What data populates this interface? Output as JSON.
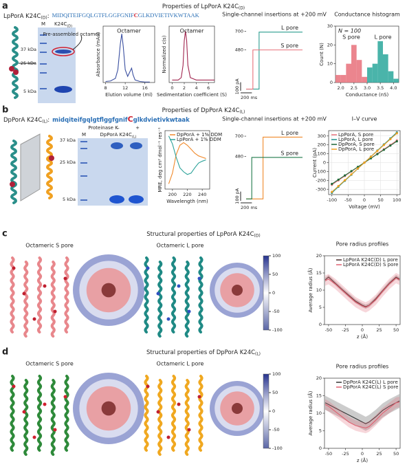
{
  "figure": {
    "a": {
      "letter": "a",
      "title": [
        "Properties of LpPorA K24C",
        "(D)"
      ],
      "seq_label": [
        "LpPorA K24C",
        "(D)",
        ":"
      ],
      "sequence": [
        "MIDQITEIFGQLGTFLGGFGNIF",
        "C",
        "GLKDVIETIVKWTAAK"
      ],
      "gel_lanes": [
        "M",
        "K24C",
        "(D)"
      ],
      "gel_markers": [
        "37 kDa",
        "25 kDa",
        "5 kDa"
      ],
      "gel_note": "Pre-assembled octamer"
    },
    "b": {
      "letter": "b",
      "title": [
        "Properties of DpPorA K24C",
        "(L)"
      ],
      "seq_label": [
        "DpPorA K24C",
        "(L)",
        ":"
      ],
      "sequence": [
        "midqiteifgqlgtflggfgnif",
        "C",
        "glkdvietivkwtaak"
      ],
      "protease": [
        "Proteinase K",
        "–",
        "+"
      ],
      "gel_lanes": [
        "M",
        "DpPorA K24C",
        "(L)"
      ],
      "gel_markers": [
        "37 kDa",
        "25 kDa",
        "5 kDa"
      ]
    },
    "c": {
      "letter": "c",
      "title": [
        "Structural properties of LpPorA K24C",
        "(D)"
      ],
      "views": [
        "Octameric S pore",
        "Octameric L pore"
      ],
      "colorbar": {
        "lim": [
          -100,
          100
        ],
        "ticks": [
          100,
          50,
          0,
          -50,
          -100
        ],
        "colors": [
          "#27348f",
          "#ffffff",
          "#5a66a6"
        ]
      }
    },
    "d": {
      "letter": "d",
      "title": [
        "Structural properties of DpPorA K24C",
        "(L)"
      ],
      "views": [
        "Octameric S pore",
        "Octameric L pore"
      ],
      "colorbar": {
        "lim": [
          -100,
          100
        ],
        "ticks": [
          100,
          50,
          0,
          -50,
          -100
        ],
        "colors": [
          "#27348f",
          "#ffffff",
          "#5a66a6"
        ]
      }
    }
  },
  "chart_data": [
    {
      "type": "line",
      "xlabel": "Elution volume (ml)",
      "ylabel": "Absorbance (mAu)",
      "annotation": "Octamer",
      "x": [
        8,
        9,
        10,
        10.5,
        11,
        11.3,
        11.6,
        12,
        12.5,
        13,
        13.3,
        13.6,
        14,
        15,
        16,
        17
      ],
      "series": [
        {
          "color": "#3a4fa0",
          "values": [
            0.02,
            0.03,
            0.08,
            0.25,
            0.75,
            0.95,
            0.7,
            0.25,
            0.12,
            0.22,
            0.28,
            0.15,
            0.05,
            0.02,
            0.01,
            0.01
          ]
        }
      ],
      "xlim": [
        7.5,
        18
      ],
      "xticks": [
        8,
        12,
        16
      ],
      "ylim": [
        0,
        1.1
      ]
    },
    {
      "type": "line",
      "xlabel": "Sedimentation coefficient (S)",
      "ylabel": "Normalized c(s)",
      "annotation": "Octamer",
      "x": [
        0,
        1,
        1.5,
        1.8,
        2.0,
        2.2,
        2.4,
        2.6,
        3,
        4,
        5,
        6,
        7
      ],
      "series": [
        {
          "color": "#a0244e",
          "values": [
            0,
            0,
            0.05,
            0.3,
            0.8,
            1.0,
            0.8,
            0.3,
            0.05,
            0,
            0,
            0,
            0
          ]
        }
      ],
      "xlim": [
        -0.5,
        7
      ],
      "xticks": [
        0,
        2,
        4,
        6
      ],
      "ylim": [
        -0.05,
        1.1
      ]
    },
    {
      "type": "line",
      "title": "Single-channel insertions at +200 mV",
      "frame": false,
      "legend": "inline",
      "x": [
        0,
        120,
        120,
        230,
        230,
        1000
      ],
      "series": [
        {
          "name": "L pore",
          "color": "#2a9d8f",
          "values": [
            20,
            20,
            20,
            20,
            690,
            690
          ]
        },
        {
          "name": "S pore",
          "color": "#e8707a",
          "values": [
            20,
            20,
            480,
            480,
            480,
            480
          ]
        }
      ],
      "xlim": [
        0,
        1000
      ],
      "ylim": [
        0,
        760
      ],
      "yticks": [
        480,
        700
      ],
      "scale_bar": {
        "x": 200,
        "x_label": "200 ms",
        "y": 100,
        "y_label": "100 pA"
      }
    },
    {
      "type": "histogram",
      "title": "Conductance histogram",
      "xlabel": "Conductance (nS)",
      "ylabel": "Count (N)",
      "annotation": "N = 100",
      "legend": "inline",
      "series": [
        {
          "name": "S pore",
          "color": "#e8707a",
          "bins": [
            1.8,
            2.0,
            2.2,
            2.4,
            2.6,
            2.8,
            3.0
          ],
          "values": [
            4,
            4,
            10,
            20,
            12,
            3
          ]
        },
        {
          "name": "L pore",
          "color": "#2aa79b",
          "bins": [
            3.0,
            3.2,
            3.4,
            3.6,
            3.8,
            4.0,
            4.2
          ],
          "values": [
            8,
            10,
            22,
            15,
            6,
            2
          ]
        }
      ],
      "xlim": [
        1.8,
        4.2
      ],
      "xticks": [
        {
          "value": 2,
          "label": "2.0"
        },
        2.5,
        {
          "value": 3,
          "label": "3.0"
        },
        3.5,
        {
          "value": 4,
          "label": "4.0"
        }
      ],
      "ylim": [
        0,
        30
      ],
      "yticks": [
        0,
        10,
        20,
        30
      ]
    },
    {
      "type": "line",
      "xlabel": "Wavelength (nm)",
      "ylabel": "MRE, deg cm² dmol⁻¹ res⁻¹",
      "legend": "upper right",
      "x": [
        195,
        200,
        205,
        210,
        215,
        220,
        225,
        230,
        235,
        240,
        245
      ],
      "series": [
        {
          "name": "DpPorA + 1% DDM",
          "color": "#f0892a",
          "values": [
            -0.9,
            -0.5,
            0.2,
            0.55,
            0.65,
            0.55,
            0.4,
            0.25,
            0.15,
            0.1,
            0.05
          ]
        },
        {
          "name": "LpPorA + 1% DDM",
          "color": "#2aa198",
          "values": [
            0.9,
            0.6,
            0.1,
            -0.3,
            -0.45,
            -0.55,
            -0.5,
            -0.3,
            -0.12,
            -0.05,
            0
          ]
        }
      ],
      "xlim": [
        190,
        250
      ],
      "xticks": [
        200,
        220,
        240
      ],
      "ylim": [
        -1.1,
        1.1
      ]
    },
    {
      "type": "line",
      "title": "Single-channel insertions at +200 mV",
      "frame": false,
      "legend": "inline",
      "x": [
        0,
        100,
        100,
        300,
        300,
        1000
      ],
      "series": [
        {
          "name": "L pore",
          "color": "#f0892a",
          "values": [
            20,
            20,
            20,
            20,
            690,
            690
          ]
        },
        {
          "name": "S pore",
          "color": "#1f7a4a",
          "values": [
            20,
            20,
            470,
            470,
            470,
            470
          ]
        }
      ],
      "xlim": [
        0,
        1000
      ],
      "ylim": [
        0,
        760
      ],
      "yticks": [
        480,
        700
      ],
      "scale_bar": {
        "x": 200,
        "x_label": "200 ms",
        "y": 100,
        "y_label": "100 pA"
      }
    },
    {
      "type": "line",
      "title": "I–V curve",
      "xlabel": "Voltage (mV)",
      "ylabel": "Current (pA)",
      "legend": "upper left",
      "markers": true,
      "grid": true,
      "x": [
        -100,
        -80,
        -60,
        -40,
        -20,
        0,
        20,
        40,
        60,
        80,
        100
      ],
      "series": [
        {
          "name": "LpPorA, S pore",
          "color": "#e8707a",
          "values": [
            -250,
            -200,
            -150,
            -100,
            -50,
            0,
            50,
            100,
            150,
            200,
            250
          ]
        },
        {
          "name": "LpPorA, L pore",
          "color": "#1f8f8a",
          "values": [
            -340,
            -272,
            -204,
            -136,
            -68,
            0,
            68,
            136,
            204,
            272,
            340
          ]
        },
        {
          "name": "DpPorA, S pore",
          "color": "#1f6b3a",
          "values": [
            -240,
            -192,
            -144,
            -96,
            -48,
            0,
            48,
            96,
            144,
            192,
            240
          ]
        },
        {
          "name": "DpPorA, L pore",
          "color": "#f0a020",
          "values": [
            -330,
            -264,
            -198,
            -132,
            -66,
            0,
            66,
            132,
            198,
            264,
            330
          ]
        }
      ],
      "xlim": [
        -110,
        110
      ],
      "xticks": [
        -100,
        -50,
        0,
        50,
        100
      ],
      "ylim": [
        -360,
        360
      ],
      "yticks": [
        -300,
        -200,
        -100,
        0,
        100,
        200,
        300
      ]
    },
    {
      "type": "line",
      "title": "Pore radius profiles",
      "xlabel": "z (Å)",
      "ylabel": "Average radius (Å)",
      "legend": "upper center",
      "x": [
        -55,
        -50,
        -40,
        -30,
        -20,
        -10,
        0,
        5,
        10,
        20,
        30,
        40,
        50,
        55
      ],
      "series": [
        {
          "name": "LpPorA K24C(D) L pore",
          "color": "#4a2a2a",
          "values": [
            13,
            13.8,
            12,
            10.2,
            8.5,
            6.8,
            5.6,
            5.2,
            5.6,
            7.5,
            9.8,
            12,
            13.8,
            13.2
          ],
          "error": [
            0.6,
            0.6,
            0.6,
            0.6,
            0.6,
            0.6,
            0.6,
            0.6,
            0.6,
            0.6,
            0.6,
            0.6,
            0.6,
            0.6
          ]
        },
        {
          "name": "LpPorA K24C(D) S pore",
          "color": "#e06070",
          "values": [
            12.8,
            13.2,
            11.8,
            10,
            8.2,
            6.5,
            5.4,
            5.0,
            5.5,
            7.2,
            9.6,
            11.8,
            13.5,
            13
          ],
          "error": [
            1.5,
            1.5,
            1.5,
            1.5,
            1.5,
            1.5,
            1.5,
            1.5,
            1.5,
            1.5,
            1.5,
            1.5,
            1.5,
            1.5
          ]
        }
      ],
      "xlim": [
        -56,
        56
      ],
      "xticks": [
        -50,
        -25,
        0,
        25,
        50
      ],
      "ylim": [
        0,
        20
      ],
      "yticks": [
        0,
        5,
        10,
        15,
        20
      ]
    },
    {
      "type": "line",
      "title": "Pore radius profiles",
      "xlabel": "z (Å)",
      "ylabel": "Average radius (Å)",
      "legend": "upper center",
      "x": [
        -55,
        -50,
        -40,
        -30,
        -20,
        -10,
        0,
        5,
        10,
        20,
        30,
        40,
        50,
        55
      ],
      "series": [
        {
          "name": "DpPorA K24C(L) L pore",
          "color": "#333333",
          "values": [
            13,
            12.5,
            11.5,
            10.5,
            9.5,
            8.5,
            7.5,
            7,
            7.5,
            9,
            10.8,
            12,
            13,
            13.5
          ],
          "error": [
            2,
            2,
            2,
            2,
            2,
            2,
            2,
            2,
            2,
            2,
            2,
            2,
            2,
            2
          ]
        },
        {
          "name": "DpPorA K24C(L) S pore",
          "color": "#e06070",
          "values": [
            12.5,
            12,
            10.5,
            9,
            7.5,
            6.5,
            6,
            5.8,
            6.2,
            8,
            10,
            11.5,
            13,
            13.2
          ],
          "error": [
            1.5,
            1.5,
            1.5,
            1.5,
            1.5,
            1.5,
            1.5,
            1.5,
            1.5,
            1.5,
            1.5,
            1.5,
            1.5,
            1.5
          ]
        }
      ],
      "xlim": [
        -56,
        56
      ],
      "xticks": [
        -50,
        -25,
        0,
        25,
        50
      ],
      "ylim": [
        0,
        20
      ],
      "yticks": [
        0,
        5,
        10,
        15,
        20
      ]
    }
  ]
}
